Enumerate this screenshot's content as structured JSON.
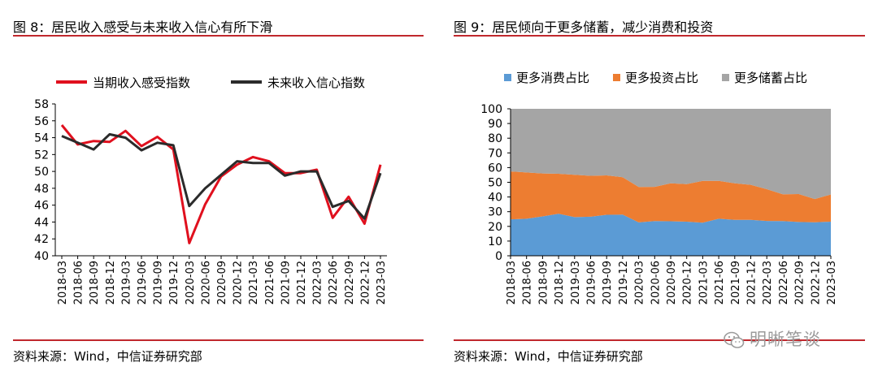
{
  "left": {
    "figure_title": "图 8：居民收入感受与未来收入信心有所下滑",
    "source": "资料来源：Wind，中信证券研究部"
  },
  "right": {
    "figure_title": "图 9：居民倾向于更多储蓄，减少消费和投资",
    "source": "资料来源：Wind，中信证券研究部"
  },
  "watermark": "明晰笔谈",
  "colors": {
    "rule": "#c0282d",
    "current_income": "#e0101e",
    "future_income": "#2b2b2b",
    "consumption": "#5b9bd5",
    "investment": "#ed7d31",
    "savings": "#a5a5a5"
  },
  "chart_data": [
    {
      "type": "line",
      "title": "",
      "xlabel": "",
      "ylabel": "",
      "ylim": [
        40,
        58
      ],
      "yticks": [
        "40",
        "42",
        "44",
        "46",
        "48",
        "50",
        "52",
        "54",
        "56",
        "58"
      ],
      "legend_position": "top",
      "categories": [
        "2018-03",
        "2018-06",
        "2018-09",
        "2018-12",
        "2019-03",
        "2019-06",
        "2019-09",
        "2019-12",
        "2020-03",
        "2020-06",
        "2020-09",
        "2020-12",
        "2021-03",
        "2021-06",
        "2021-09",
        "2021-12",
        "2022-03",
        "2022-06",
        "2022-09",
        "2022-12",
        "2023-03"
      ],
      "series": [
        {
          "name": "当期收入感受指数",
          "color_key": "current_income",
          "values": [
            55.5,
            53.2,
            53.6,
            53.5,
            54.8,
            53.0,
            54.1,
            52.6,
            41.5,
            46.1,
            49.4,
            50.8,
            51.7,
            51.2,
            49.8,
            49.8,
            50.2,
            44.5,
            47.0,
            43.8,
            50.8
          ]
        },
        {
          "name": "未来收入信心指数",
          "color_key": "future_income",
          "values": [
            54.2,
            53.4,
            52.6,
            54.4,
            54.0,
            52.5,
            53.4,
            53.1,
            45.9,
            48.0,
            49.6,
            51.2,
            51.0,
            51.0,
            49.5,
            50.0,
            50.0,
            45.8,
            46.5,
            44.4,
            49.8
          ]
        }
      ]
    },
    {
      "type": "area",
      "stacked": true,
      "title": "",
      "xlabel": "",
      "ylabel": "",
      "ylim": [
        0,
        100
      ],
      "yticks": [
        "0",
        "10",
        "20",
        "30",
        "40",
        "50",
        "60",
        "70",
        "80",
        "90",
        "100"
      ],
      "legend_position": "top",
      "categories": [
        "2018-03",
        "2018-06",
        "2018-09",
        "2018-12",
        "2019-03",
        "2019-06",
        "2019-09",
        "2019-12",
        "2020-03",
        "2020-06",
        "2020-09",
        "2020-12",
        "2021-03",
        "2021-06",
        "2021-09",
        "2021-12",
        "2022-03",
        "2022-06",
        "2022-09",
        "2022-12",
        "2023-03"
      ],
      "series": [
        {
          "name": "更多消费占比",
          "color_key": "consumption",
          "values": [
            24.8,
            25.2,
            26.8,
            28.6,
            26.3,
            26.6,
            27.9,
            28.0,
            22.7,
            23.6,
            23.5,
            23.2,
            22.5,
            25.2,
            24.5,
            24.4,
            23.7,
            23.6,
            23.0,
            22.8,
            23.2
          ]
        },
        {
          "name": "更多投资占比",
          "color_key": "investment",
          "values": [
            32.6,
            31.5,
            29.2,
            27.2,
            28.8,
            27.8,
            26.8,
            25.5,
            24.1,
            23.3,
            25.8,
            25.6,
            28.5,
            25.8,
            24.8,
            23.9,
            21.6,
            18.2,
            19.0,
            15.8,
            18.5
          ]
        },
        {
          "name": "更多储蓄占比",
          "color_key": "savings",
          "values": [
            42.6,
            43.3,
            44.0,
            44.2,
            44.9,
            45.6,
            45.3,
            46.5,
            53.2,
            53.1,
            50.7,
            51.2,
            49.0,
            49.0,
            50.7,
            51.7,
            54.7,
            58.2,
            58.0,
            61.4,
            58.3
          ]
        }
      ]
    }
  ]
}
